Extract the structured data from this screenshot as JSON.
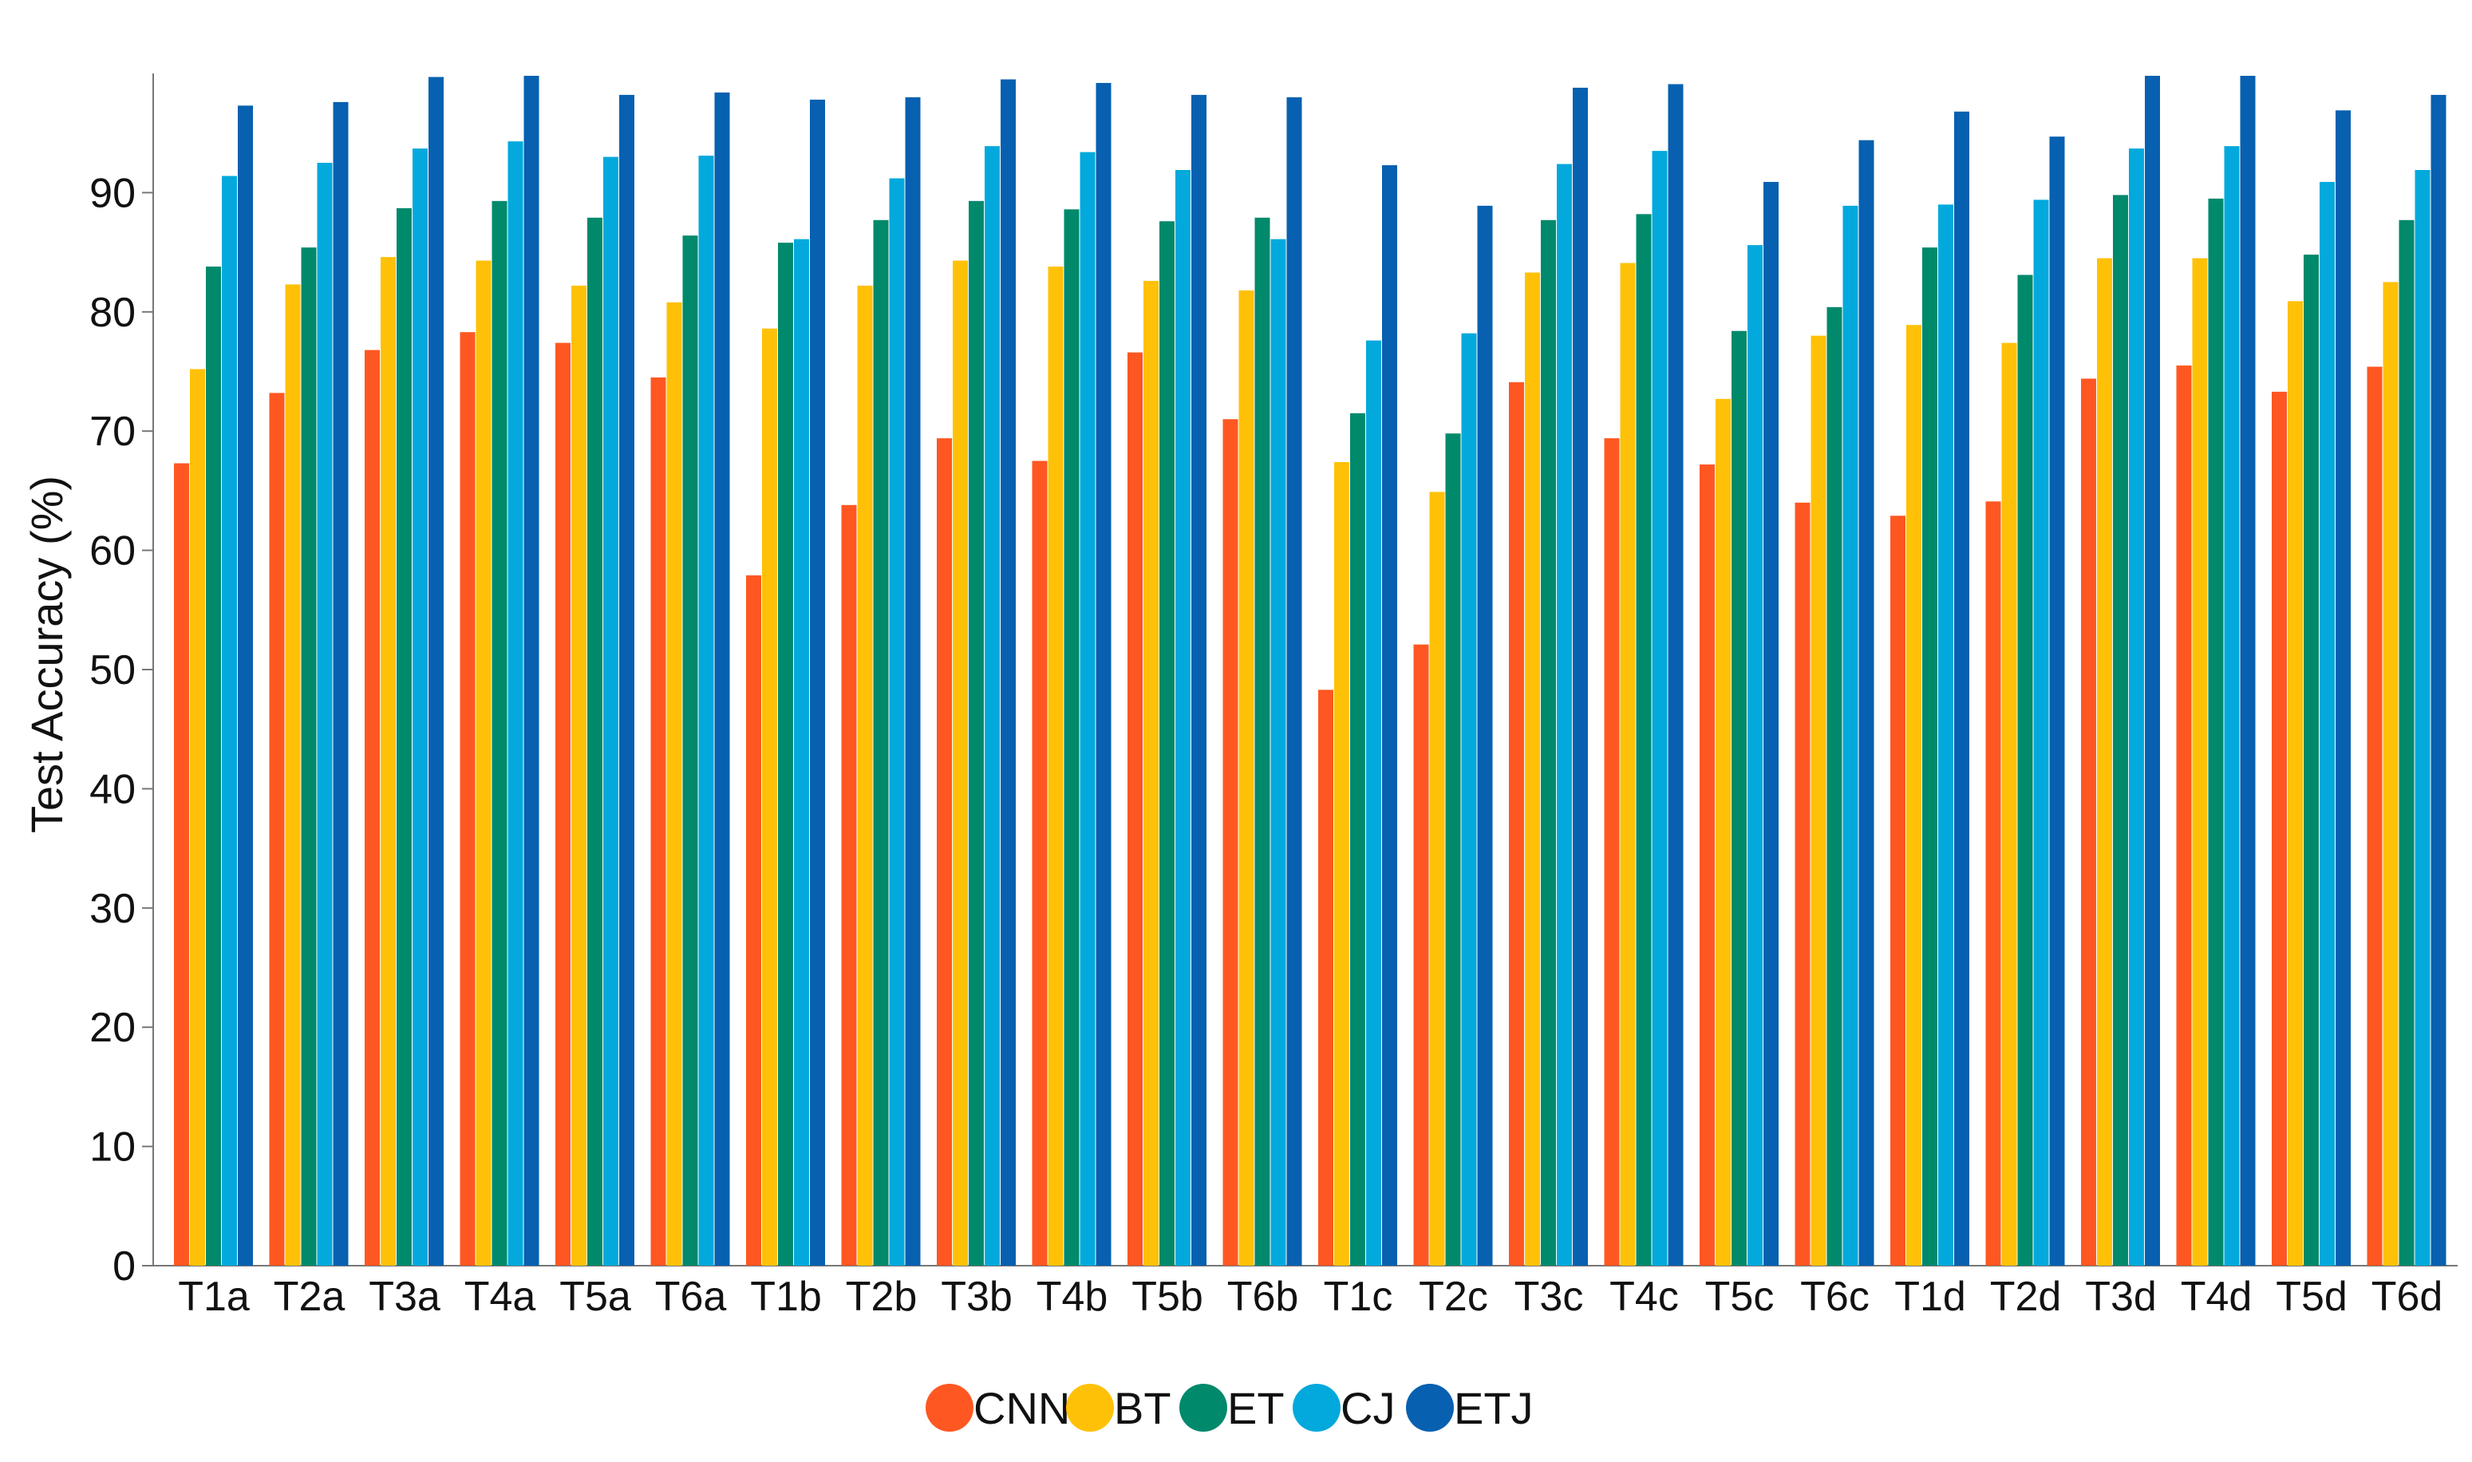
{
  "chart_data": {
    "type": "bar",
    "title": "",
    "xlabel": "",
    "ylabel": "Test Accuracy (%)",
    "ylim": [
      0,
      100
    ],
    "yticks": [
      0,
      10,
      20,
      30,
      40,
      50,
      60,
      70,
      80,
      90
    ],
    "grid": false,
    "legend_position": "bottom-center",
    "categories": [
      "T1a",
      "T2a",
      "T3a",
      "T4a",
      "T5a",
      "T6a",
      "T1b",
      "T2b",
      "T3b",
      "T4b",
      "T5b",
      "T6b",
      "T1c",
      "T2c",
      "T3c",
      "T4c",
      "T5c",
      "T6c",
      "T1d",
      "T2d",
      "T3d",
      "T4d",
      "T5d",
      "T6d"
    ],
    "series": [
      {
        "name": "CNN",
        "color": "#ff5722",
        "values": [
          67.3,
          73.2,
          76.8,
          78.3,
          77.4,
          74.5,
          57.9,
          63.8,
          69.4,
          67.5,
          76.6,
          71.0,
          48.3,
          52.1,
          74.1,
          69.4,
          67.2,
          64.0,
          62.9,
          64.1,
          74.4,
          75.5,
          73.3,
          75.4
        ]
      },
      {
        "name": "BT",
        "color": "#ffc107",
        "values": [
          75.2,
          82.3,
          84.6,
          84.3,
          82.2,
          80.8,
          78.6,
          82.2,
          84.3,
          83.8,
          82.6,
          81.8,
          67.4,
          64.9,
          83.3,
          84.1,
          72.7,
          78.0,
          78.9,
          77.4,
          84.5,
          84.5,
          80.9,
          82.5
        ]
      },
      {
        "name": "ET",
        "color": "#00896b",
        "values": [
          83.8,
          85.4,
          88.7,
          89.3,
          87.9,
          86.4,
          85.8,
          87.7,
          89.3,
          88.6,
          87.6,
          87.9,
          71.5,
          69.8,
          87.7,
          88.2,
          78.4,
          80.4,
          85.4,
          83.1,
          89.8,
          89.5,
          84.8,
          87.7
        ]
      },
      {
        "name": "CJ",
        "color": "#03a9dc",
        "values": [
          91.4,
          92.5,
          93.7,
          94.3,
          93.0,
          93.1,
          86.1,
          91.2,
          93.9,
          93.4,
          91.9,
          86.1,
          77.6,
          78.2,
          92.4,
          93.5,
          85.6,
          88.9,
          89.0,
          89.4,
          93.7,
          93.9,
          90.9,
          91.9
        ]
      },
      {
        "name": "ETJ",
        "color": "#0760b0",
        "values": [
          97.3,
          97.6,
          99.7,
          99.8,
          98.2,
          98.4,
          97.8,
          98.0,
          99.5,
          99.2,
          98.2,
          98.0,
          92.3,
          88.9,
          98.8,
          99.1,
          90.9,
          94.4,
          96.8,
          94.7,
          99.8,
          99.8,
          96.9,
          98.2
        ]
      }
    ]
  }
}
